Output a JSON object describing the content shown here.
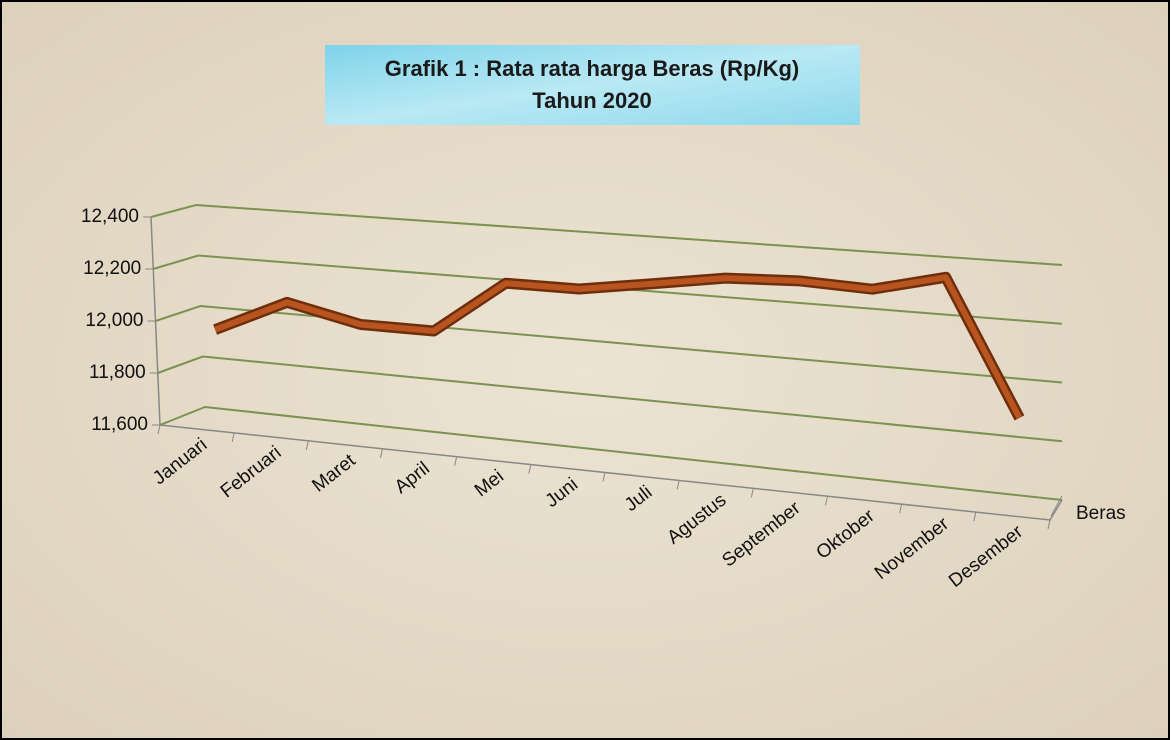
{
  "chart_data": {
    "type": "line3d",
    "title": "Grafik 1 : Rata rata harga Beras (Rp/Kg)",
    "subtitle": "Tahun 2020",
    "categories": [
      "Januari",
      "Februari",
      "Maret",
      "April",
      "Mei",
      "Juni",
      "Juli",
      "Agustus",
      "September",
      "Oktober",
      "November",
      "Desember"
    ],
    "series": [
      {
        "name": "Beras",
        "color": "#b8541f",
        "values": [
          11950,
          12080,
          12020,
          12020,
          12220,
          12220,
          12260,
          12300,
          12310,
          12300,
          12360,
          11900
        ]
      }
    ],
    "ylim": [
      11600,
      12400
    ],
    "yticks": [
      {
        "value": 11600,
        "label": "11,600"
      },
      {
        "value": 11800,
        "label": "11,800"
      },
      {
        "value": 12000,
        "label": "12,000"
      },
      {
        "value": 12200,
        "label": "12,200"
      },
      {
        "value": 12400,
        "label": "12,400"
      }
    ],
    "grid": true
  }
}
